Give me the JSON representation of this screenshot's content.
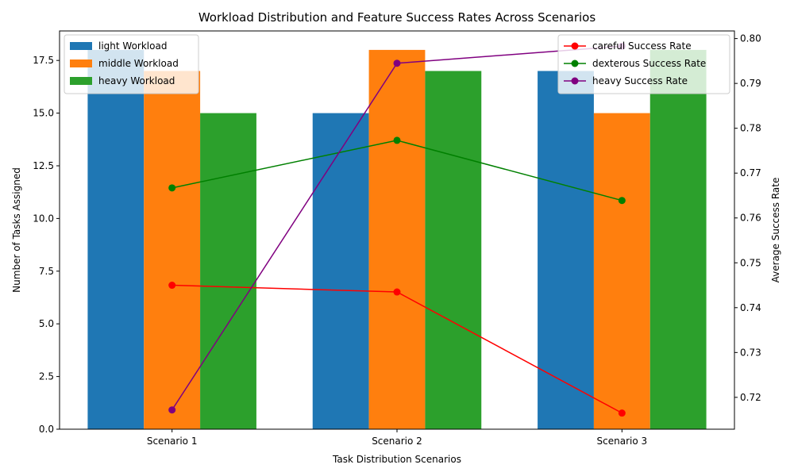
{
  "chart_data": {
    "type": "bar",
    "title": "Workload Distribution and Feature Success Rates Across Scenarios",
    "xlabel": "Task Distribution Scenarios",
    "ylabel": "Number of Tasks Assigned",
    "ylabel_right": "Average Success Rate",
    "categories": [
      "Scenario 1",
      "Scenario 2",
      "Scenario 3"
    ],
    "ylim": [
      0,
      18.9
    ],
    "ylim_right": [
      0.7129,
      0.8017
    ],
    "yticks": [
      "0.0",
      "2.5",
      "5.0",
      "7.5",
      "10.0",
      "12.5",
      "15.0",
      "17.5"
    ],
    "yticks_right": [
      "0.72",
      "0.73",
      "0.74",
      "0.75",
      "0.76",
      "0.77",
      "0.78",
      "0.79",
      "0.80"
    ],
    "series": [
      {
        "name": "light Workload",
        "color": "#1f77b4",
        "values": [
          18,
          15,
          17
        ]
      },
      {
        "name": "middle Workload",
        "color": "#ff7f0e",
        "values": [
          17,
          18,
          15
        ]
      },
      {
        "name": "heavy Workload",
        "color": "#2ca02c",
        "values": [
          15,
          17,
          18
        ]
      }
    ],
    "line_series": [
      {
        "name": "careful Success Rate",
        "color": "#ff0000",
        "values": [
          0.745,
          0.7435,
          0.7165
        ]
      },
      {
        "name": "dexterous Success Rate",
        "color": "#008000",
        "values": [
          0.7667,
          0.7773,
          0.7639
        ]
      },
      {
        "name": "heavy Success Rate",
        "color": "#800080",
        "values": [
          0.7172,
          0.7945,
          0.7983
        ]
      }
    ],
    "legend_left_position": "upper-left",
    "legend_right_position": "upper-right",
    "grid": false
  }
}
